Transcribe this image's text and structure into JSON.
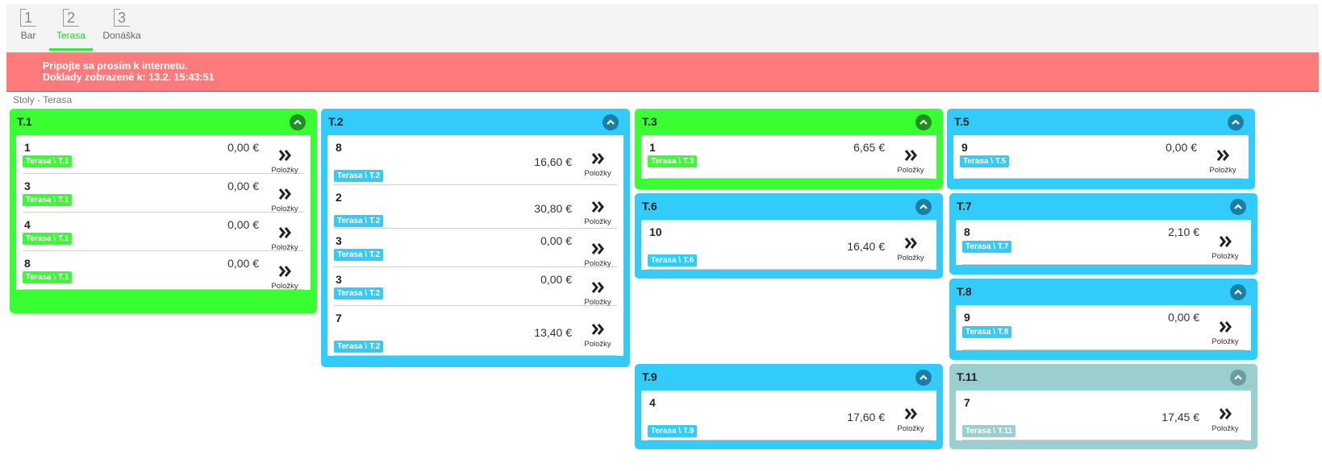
{
  "tabs": [
    {
      "num": "1",
      "label": "Bar"
    },
    {
      "num": "2",
      "label": "Terasa"
    },
    {
      "num": "3",
      "label": "Donáška"
    }
  ],
  "alert": {
    "line1": "Pripojte sa prosím k internetu.",
    "line2": "Doklady zobrazené k: 13.2. 15:43:51"
  },
  "section_title": "Stoly - Terasa",
  "items_label": "Položky",
  "colors": {
    "green": "#39ff32",
    "blue": "#33ccfa",
    "teal": "#9bcfcf",
    "alert": "#ff7b7b"
  },
  "tables": [
    {
      "name": "T.1",
      "orders": [
        {
          "num": "1",
          "price": "0,00 €",
          "badge": "Terasa \\ T.1"
        },
        {
          "num": "3",
          "price": "0,00 €",
          "badge": "Terasa \\ T.1"
        },
        {
          "num": "4",
          "price": "0,00 €",
          "badge": "Terasa \\ T.1"
        },
        {
          "num": "8",
          "price": "0,00 €",
          "badge": "Terasa \\ T.1"
        }
      ]
    },
    {
      "name": "T.2",
      "orders": [
        {
          "num": "8",
          "price": "16,60 €",
          "badge": "Terasa \\ T.2"
        },
        {
          "num": "2",
          "price": "30,80 €",
          "badge": "Terasa \\ T.2"
        },
        {
          "num": "3",
          "price": "0,00 €",
          "badge": "Terasa \\ T.2"
        },
        {
          "num": "3",
          "price": "0,00 €",
          "badge": "Terasa \\ T.2"
        },
        {
          "num": "7",
          "price": "13,40 €",
          "badge": "Terasa \\ T.2"
        }
      ]
    },
    {
      "name": "T.3",
      "orders": [
        {
          "num": "1",
          "price": "6,65 €",
          "badge": "Terasa \\ T.3"
        }
      ]
    },
    {
      "name": "T.5",
      "orders": [
        {
          "num": "9",
          "price": "0,00 €",
          "badge": "Terasa \\ T.5"
        }
      ]
    },
    {
      "name": "T.6",
      "orders": [
        {
          "num": "10",
          "price": "16,40 €",
          "badge": "Terasa \\ T.6"
        }
      ]
    },
    {
      "name": "T.7",
      "orders": [
        {
          "num": "8",
          "price": "2,10 €",
          "badge": "Terasa \\ T.7"
        }
      ]
    },
    {
      "name": "T.8",
      "orders": [
        {
          "num": "9",
          "price": "0,00 €",
          "badge": "Terasa \\ T.8"
        }
      ]
    },
    {
      "name": "T.9",
      "orders": [
        {
          "num": "4",
          "price": "17,60 €",
          "badge": "Terasa \\ T.9"
        }
      ]
    },
    {
      "name": "T.11",
      "orders": [
        {
          "num": "7",
          "price": "17,45 €",
          "badge": "Terasa \\ T.11"
        }
      ]
    }
  ]
}
